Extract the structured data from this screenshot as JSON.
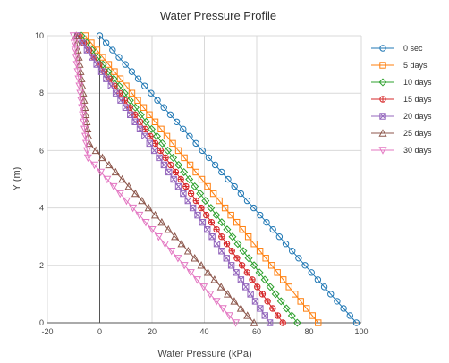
{
  "chart_data": {
    "type": "line",
    "title": "Water Pressure Profile",
    "xlabel": "Water Pressure (kPa)",
    "ylabel": "Y (m)",
    "xlim": [
      -20,
      100
    ],
    "ylim": [
      0,
      10
    ],
    "xticks": [
      -20,
      0,
      20,
      40,
      60,
      80,
      100
    ],
    "yticks": [
      0,
      2,
      4,
      6,
      8,
      10
    ],
    "grid": true,
    "legend_position": "right",
    "y_step": 0.25,
    "series": [
      {
        "name": "0 sec",
        "color": "#1f77b4",
        "marker": "circle",
        "profile": [
          [
            0,
            98.1
          ],
          [
            10,
            0
          ]
        ]
      },
      {
        "name": "5 days",
        "color": "#ff7f0e",
        "marker": "square",
        "profile": [
          [
            0,
            83.5
          ],
          [
            10,
            -5.5
          ]
        ]
      },
      {
        "name": "10 days",
        "color": "#2ca02c",
        "marker": "diamond",
        "profile": [
          [
            0,
            75.5
          ],
          [
            10,
            -7
          ]
        ]
      },
      {
        "name": "15 days",
        "color": "#d62728",
        "marker": "circle-cross",
        "profile": [
          [
            0,
            70
          ],
          [
            10,
            -8
          ]
        ]
      },
      {
        "name": "20 days",
        "color": "#9467bd",
        "marker": "square-x",
        "profile": [
          [
            0,
            65
          ],
          [
            10,
            -8.5
          ]
        ]
      },
      {
        "name": "25 days",
        "color": "#8c564b",
        "marker": "triangle-up",
        "profile": [
          [
            0,
            59
          ],
          [
            6.25,
            -4
          ],
          [
            10,
            -9
          ]
        ]
      },
      {
        "name": "30 days",
        "color": "#e377c2",
        "marker": "triangle-down",
        "profile": [
          [
            0,
            52
          ],
          [
            5.75,
            -4.5
          ],
          [
            10,
            -10
          ]
        ]
      }
    ]
  }
}
